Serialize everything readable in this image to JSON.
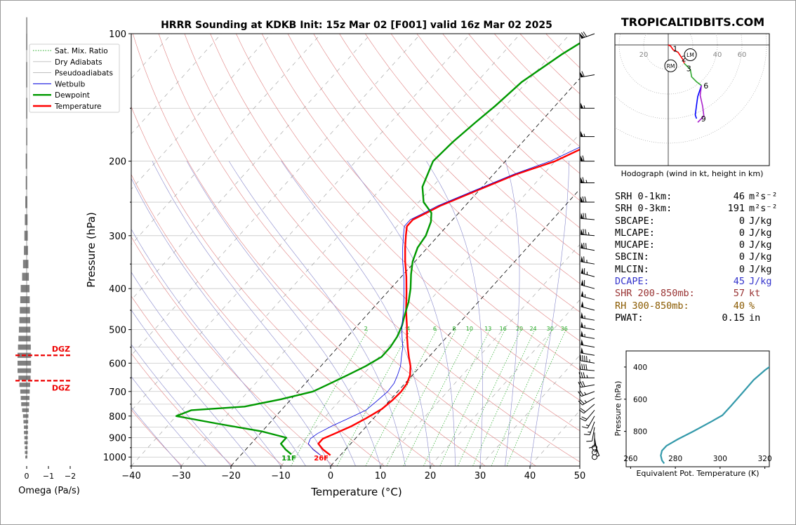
{
  "title": "HRRR Sounding at KDKB Init: 15z Mar 02 [F001] valid 16z Mar 02 2025",
  "watermark": "TROPICALTIDBITS.COM",
  "hodograph_caption": "Hodograph (wind in kt, height in km)",
  "colors": {
    "temperature": "#ff0000",
    "dewpoint": "#009900",
    "wetbulb": "#0000dd",
    "dry_adiabat": "#e08080",
    "moist_adiabat": "#8888cc",
    "mixing_ratio": "#22aa22",
    "parcel": "#000000",
    "isotherm_dash": "#999999",
    "dgz": "#ee0000",
    "omega": "#808080",
    "theta_e": "#3399aa",
    "hodo_low": "#ff0000",
    "hodo_mid": "#33aa33",
    "hodo_high": "#0000ff",
    "hodo_top": "#aa22cc",
    "watermark": "#888888"
  },
  "chart_data": [
    {
      "type": "line",
      "name": "skewt",
      "xlabel": "Temperature (°C)",
      "ylabel": "Pressure (hPa)",
      "xlim": [
        -40,
        50
      ],
      "ylim": [
        1050,
        100
      ],
      "log_y": true,
      "x_ticks": [
        -40,
        -30,
        -20,
        -10,
        0,
        10,
        20,
        30,
        40,
        50
      ],
      "x_tick_labels": [
        "−40",
        "−30",
        "−20",
        "−10",
        "0",
        "10",
        "20",
        "30",
        "40",
        "50"
      ],
      "y_ticks": [
        100,
        200,
        300,
        400,
        500,
        600,
        700,
        800,
        900,
        1000
      ],
      "legend": {
        "placement": "top-left",
        "entries": [
          "Sat. Mix. Ratio",
          "Dry Adiabats",
          "Pseudoadiabats",
          "Wetbulb",
          "Dewpoint",
          "Temperature"
        ]
      },
      "series": [
        {
          "name": "Temperature",
          "points": [
            [
              -2.0,
              990
            ],
            [
              -4.5,
              960
            ],
            [
              -6.5,
              930
            ],
            [
              -6.5,
              905
            ],
            [
              -5.0,
              880
            ],
            [
              -3.0,
              845
            ],
            [
              -1.5,
              810
            ],
            [
              0,
              770
            ],
            [
              0.5,
              735
            ],
            [
              0.7,
              700
            ],
            [
              0.4,
              670
            ],
            [
              -0.5,
              640
            ],
            [
              -2,
              610
            ],
            [
              -4,
              580
            ],
            [
              -6,
              550
            ],
            [
              -8,
              520
            ],
            [
              -10,
              490
            ],
            [
              -13,
              450
            ],
            [
              -16,
              410
            ],
            [
              -19,
              375
            ],
            [
              -22,
              345
            ],
            [
              -24.5,
              320
            ],
            [
              -26.5,
              300
            ],
            [
              -28,
              285
            ],
            [
              -28,
              275
            ],
            [
              -26.5,
              265
            ],
            [
              -25,
              255
            ],
            [
              -21,
              237
            ],
            [
              -15.5,
              215
            ],
            [
              -10,
              200
            ],
            [
              -4,
              175
            ],
            [
              -2,
              162
            ],
            [
              1,
              148
            ],
            [
              4,
              130
            ],
            [
              8,
              112
            ],
            [
              10.5,
              100
            ]
          ]
        },
        {
          "name": "Dewpoint",
          "points": [
            [
              -10,
              985
            ],
            [
              -12,
              960
            ],
            [
              -14,
              930
            ],
            [
              -14,
              900
            ],
            [
              -20,
              870
            ],
            [
              -30,
              835
            ],
            [
              -40,
              800
            ],
            [
              -38,
              775
            ],
            [
              -28,
              760
            ],
            [
              -22,
              730
            ],
            [
              -17,
              700
            ],
            [
              -15,
              670
            ],
            [
              -13,
              640
            ],
            [
              -11,
              610
            ],
            [
              -9.5,
              580
            ],
            [
              -9.5,
              550
            ],
            [
              -10,
              520
            ],
            [
              -11,
              490
            ],
            [
              -12.5,
              460
            ],
            [
              -14,
              430
            ],
            [
              -16,
              400
            ],
            [
              -18.5,
              370
            ],
            [
              -20.5,
              345
            ],
            [
              -22,
              320
            ],
            [
              -22.5,
              300
            ],
            [
              -24,
              278
            ],
            [
              -25.5,
              265
            ],
            [
              -29,
              250
            ],
            [
              -32,
              230
            ],
            [
              -34.5,
              200
            ],
            [
              -34,
              180
            ],
            [
              -33,
              162
            ],
            [
              -32,
              148
            ],
            [
              -31,
              130
            ],
            [
              -28,
              112
            ],
            [
              -25,
              100
            ]
          ]
        },
        {
          "name": "Wetbulb",
          "points": [
            [
              -4.0,
              990
            ],
            [
              -6.5,
              960
            ],
            [
              -8.5,
              930
            ],
            [
              -9,
              905
            ],
            [
              -8.5,
              880
            ],
            [
              -7,
              845
            ],
            [
              -5,
              810
            ],
            [
              -3,
              775
            ],
            [
              -2.5,
              740
            ],
            [
              -2,
              700
            ],
            [
              -2.2,
              670
            ],
            [
              -3,
              640
            ],
            [
              -4,
              610
            ],
            [
              -5.5,
              580
            ],
            [
              -7,
              550
            ],
            [
              -9,
              520
            ],
            [
              -11,
              490
            ],
            [
              -13.5,
              450
            ],
            [
              -16.5,
              410
            ],
            [
              -19.5,
              375
            ],
            [
              -22.5,
              345
            ],
            [
              -25,
              320
            ],
            [
              -27,
              300
            ],
            [
              -28.5,
              285
            ],
            [
              -28.5,
              275
            ],
            [
              -27,
              265
            ],
            [
              -25.5,
              255
            ],
            [
              -21.5,
              237
            ],
            [
              -16,
              215
            ],
            [
              -11,
              200
            ],
            [
              -5,
              175
            ],
            [
              -3,
              162
            ],
            [
              0,
              148
            ],
            [
              3,
              130
            ],
            [
              7,
              112
            ],
            [
              9.5,
              100
            ]
          ]
        }
      ],
      "annotations": [
        {
          "text": "11F",
          "x": -10,
          "p": 1000,
          "color": "#009900"
        },
        {
          "text": "26F",
          "x": -3.5,
          "p": 1000,
          "color": "#ff0000"
        }
      ],
      "mixing_ratio_labels": [
        2,
        4,
        6,
        8,
        10,
        13,
        16,
        20,
        24,
        30,
        36
      ]
    },
    {
      "type": "bar",
      "name": "omega",
      "xlabel": "Omega (Pa/s)",
      "xlim": [
        0,
        -2
      ],
      "x_ticks": [
        0,
        -1,
        -2
      ],
      "x_tick_labels": [
        "0",
        "−1",
        "−2"
      ],
      "pressure": [
        1000,
        975,
        950,
        925,
        900,
        875,
        850,
        825,
        800,
        775,
        750,
        725,
        700,
        675,
        650,
        625,
        600,
        575,
        550,
        525,
        500,
        475,
        450,
        425,
        400,
        375,
        350,
        325,
        300,
        275,
        250,
        225,
        200,
        175,
        150,
        125,
        100
      ],
      "values": [
        -0.03,
        -0.04,
        -0.04,
        -0.05,
        -0.05,
        -0.06,
        -0.06,
        -0.07,
        -0.08,
        -0.1,
        -0.12,
        -0.13,
        -0.14,
        -0.16,
        -0.18,
        -0.2,
        -0.2,
        -0.2,
        -0.19,
        -0.18,
        -0.17,
        -0.16,
        -0.15,
        -0.14,
        -0.13,
        -0.1,
        -0.08,
        -0.06,
        -0.05,
        -0.04,
        -0.03,
        -0.02,
        -0.02,
        -0.01,
        -0.01,
        -0.01,
        -0.01
      ],
      "dgz_label": "DGZ",
      "dgz_pressures": [
        575,
        660
      ]
    },
    {
      "type": "line",
      "name": "hodograph",
      "ring_labels": [
        "20",
        "20",
        "40",
        "60"
      ],
      "storm_motion_labels": [
        "RM",
        "LM"
      ],
      "height_labels": [
        "1",
        "2",
        "3",
        "6",
        "9"
      ],
      "segments": [
        {
          "color_key": "hodo_low",
          "points": [
            [
              0,
              0
            ],
            [
              2,
              -1
            ],
            [
              4,
              -4
            ],
            [
              8,
              -6
            ],
            [
              10,
              -9
            ],
            [
              12,
              -12
            ],
            [
              13,
              -15
            ]
          ]
        },
        {
          "color_key": "hodo_mid",
          "points": [
            [
              13,
              -15
            ],
            [
              15,
              -17
            ],
            [
              18,
              -20
            ],
            [
              19,
              -26
            ],
            [
              23,
              -30
            ],
            [
              27,
              -33
            ]
          ]
        },
        {
          "color_key": "hodo_high",
          "points": [
            [
              27,
              -33
            ],
            [
              24,
              -42
            ],
            [
              23,
              -49
            ],
            [
              22,
              -57
            ],
            [
              23,
              -60
            ]
          ]
        },
        {
          "color_key": "hodo_top",
          "points": [
            [
              27,
              -33
            ],
            [
              26,
              -41
            ],
            [
              28,
              -50
            ],
            [
              29,
              -58
            ],
            [
              25,
              -62
            ],
            [
              24,
              -63
            ]
          ]
        }
      ],
      "height_points": [
        [
          2,
          -3
        ],
        [
          9,
          -11
        ],
        [
          13,
          -19
        ],
        [
          27,
          -33
        ],
        [
          25,
          -60
        ]
      ],
      "storm_motion": [
        [
          2,
          -17
        ],
        [
          18,
          -8
        ]
      ]
    },
    {
      "type": "line",
      "name": "theta_e",
      "xlabel": "Equivalent Pot. Temperature (K)",
      "ylabel": "Pressure (hPa)",
      "xlim": [
        258,
        322
      ],
      "ylim": [
        1020,
        300
      ],
      "x_ticks": [
        260,
        280,
        300,
        320
      ],
      "y_ticks": [
        400,
        600,
        800
      ],
      "points": [
        [
          275,
          1000
        ],
        [
          274,
          980
        ],
        [
          273.5,
          950
        ],
        [
          274,
          920
        ],
        [
          276,
          890
        ],
        [
          281,
          850
        ],
        [
          288,
          800
        ],
        [
          296,
          740
        ],
        [
          301,
          700
        ],
        [
          305,
          640
        ],
        [
          310,
          560
        ],
        [
          315,
          480
        ],
        [
          320,
          420
        ],
        [
          324,
          380
        ],
        [
          328,
          340
        ]
      ]
    }
  ],
  "stats": [
    {
      "label": "SRH 0-1km:",
      "value": "46",
      "unit": "m²s⁻²",
      "color": "#000000"
    },
    {
      "label": "SRH 0-3km:",
      "value": "191",
      "unit": "m²s⁻²",
      "color": "#000000"
    },
    {
      "label": "SBCAPE:",
      "value": "0",
      "unit": "J/kg",
      "color": "#000000"
    },
    {
      "label": "MLCAPE:",
      "value": "0",
      "unit": "J/kg",
      "color": "#000000"
    },
    {
      "label": "MUCAPE:",
      "value": "0",
      "unit": "J/kg",
      "color": "#000000"
    },
    {
      "label": "SBCIN:",
      "value": "0",
      "unit": "J/kg",
      "color": "#000000"
    },
    {
      "label": "MLCIN:",
      "value": "0",
      "unit": "J/kg",
      "color": "#000000"
    },
    {
      "label": "DCAPE:",
      "value": "45",
      "unit": "J/kg",
      "color": "#3333cc"
    },
    {
      "label": "SHR 200-850mb:",
      "value": "57",
      "unit": "kt",
      "color": "#993333"
    },
    {
      "label": "RH 300-850mb:",
      "value": "40",
      "unit": "%",
      "color": "#8a5a00"
    },
    {
      "label": "PWAT:",
      "value": "0.15",
      "unit": "in",
      "color": "#000000"
    }
  ],
  "winds": {
    "pressure": [
      100,
      125,
      150,
      175,
      200,
      225,
      250,
      275,
      300,
      325,
      350,
      375,
      400,
      425,
      450,
      475,
      500,
      525,
      550,
      575,
      600,
      625,
      650,
      675,
      700,
      725,
      750,
      775,
      800,
      825,
      850,
      875,
      900,
      925,
      950,
      975,
      1000
    ],
    "speed_kt": [
      70,
      60,
      55,
      55,
      60,
      65,
      70,
      70,
      75,
      70,
      65,
      65,
      60,
      55,
      50,
      55,
      55,
      55,
      50,
      50,
      45,
      40,
      35,
      30,
      25,
      25,
      20,
      20,
      15,
      15,
      10,
      10,
      5,
      5,
      0,
      0,
      0
    ],
    "dir_deg": [
      250,
      260,
      270,
      270,
      270,
      270,
      270,
      275,
      275,
      280,
      280,
      285,
      285,
      285,
      285,
      280,
      280,
      280,
      280,
      280,
      280,
      275,
      270,
      260,
      250,
      240,
      230,
      220,
      210,
      200,
      190,
      180,
      170,
      160,
      0,
      0,
      0
    ]
  }
}
